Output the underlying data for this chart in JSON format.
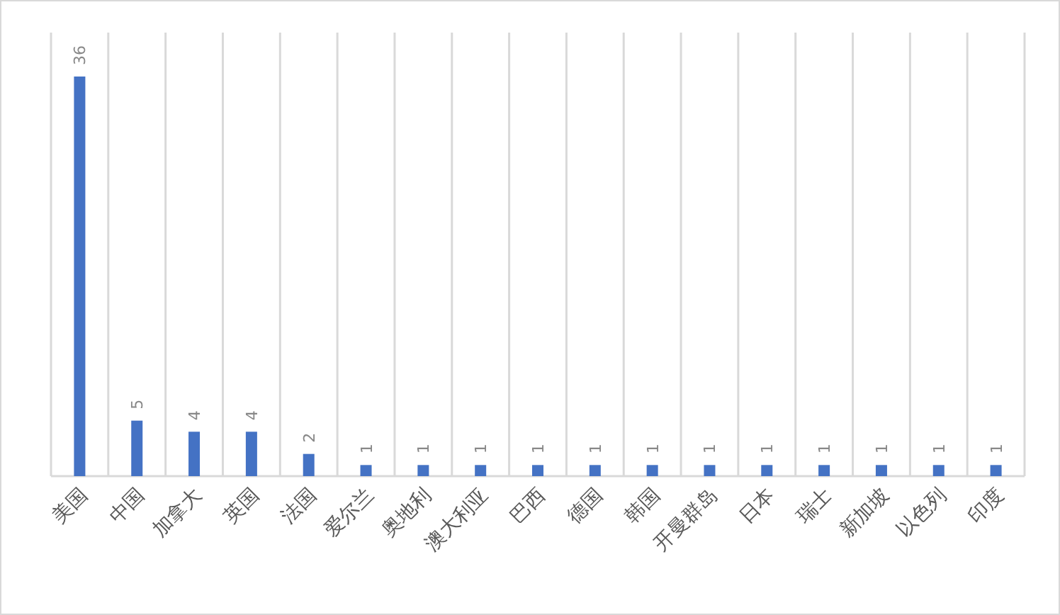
{
  "chart_data": {
    "type": "bar",
    "categories": [
      "美国",
      "中国",
      "加拿大",
      "英国",
      "法国",
      "爱尔兰",
      "奥地利",
      "澳大利亚",
      "巴西",
      "德国",
      "韩国",
      "开曼群岛",
      "日本",
      "瑞士",
      "新加坡",
      "以色列",
      "印度"
    ],
    "values": [
      36,
      5,
      4,
      4,
      2,
      1,
      1,
      1,
      1,
      1,
      1,
      1,
      1,
      1,
      1,
      1,
      1
    ],
    "color": "#4472c4",
    "data_labels": true,
    "grid": "x"
  }
}
